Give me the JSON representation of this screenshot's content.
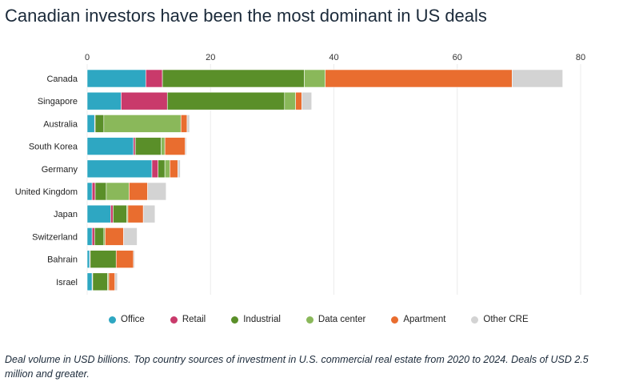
{
  "header": {
    "title": "Canadian investors have been the most dominant in US deals"
  },
  "footer": {
    "caption": "Deal volume in USD billions. Top country sources of investment in U.S. commercial real estate from 2020 to 2024. Deals of USD 2.5 million and greater."
  },
  "chart_data": {
    "type": "bar",
    "orientation": "horizontal",
    "stacked": true,
    "title": "Canadian investors have been the most dominant in US deals",
    "xlabel": "",
    "ylabel": "",
    "xlim": [
      0,
      80
    ],
    "x_ticks": [
      0,
      20,
      40,
      60,
      80
    ],
    "grid": true,
    "legend_position": "bottom",
    "categories": [
      "Canada",
      "Singapore",
      "Australia",
      "South Korea",
      "Germany",
      "United Kingdom",
      "Japan",
      "Switzerland",
      "Bahrain",
      "Israel"
    ],
    "series": [
      {
        "name": "Office",
        "color": "#2ea7c2",
        "values": [
          9.5,
          5.5,
          1.2,
          7.5,
          10.5,
          0.8,
          3.8,
          0.8,
          0.4,
          0.8
        ]
      },
      {
        "name": "Retail",
        "color": "#c93a6b",
        "values": [
          2.7,
          7.5,
          0.1,
          0.3,
          1.0,
          0.5,
          0.4,
          0.4,
          0.1,
          0.1
        ]
      },
      {
        "name": "Industrial",
        "color": "#5a8f29",
        "values": [
          23.0,
          19.0,
          1.4,
          4.2,
          1.1,
          1.8,
          2.2,
          1.5,
          4.2,
          2.4
        ]
      },
      {
        "name": "Data center",
        "color": "#8ab85a",
        "values": [
          3.4,
          1.8,
          12.5,
          0.6,
          0.8,
          3.7,
          0.2,
          0.2,
          0.0,
          0.2
        ]
      },
      {
        "name": "Apartment",
        "color": "#e96d2f",
        "values": [
          30.3,
          1.0,
          1.0,
          3.3,
          1.3,
          3.0,
          2.5,
          3.0,
          2.8,
          1.0
        ]
      },
      {
        "name": "Other CRE",
        "color": "#d3d3d3",
        "values": [
          8.2,
          1.6,
          0.4,
          0.2,
          0.4,
          3.0,
          1.9,
          2.2,
          0.2,
          0.4
        ]
      }
    ]
  }
}
